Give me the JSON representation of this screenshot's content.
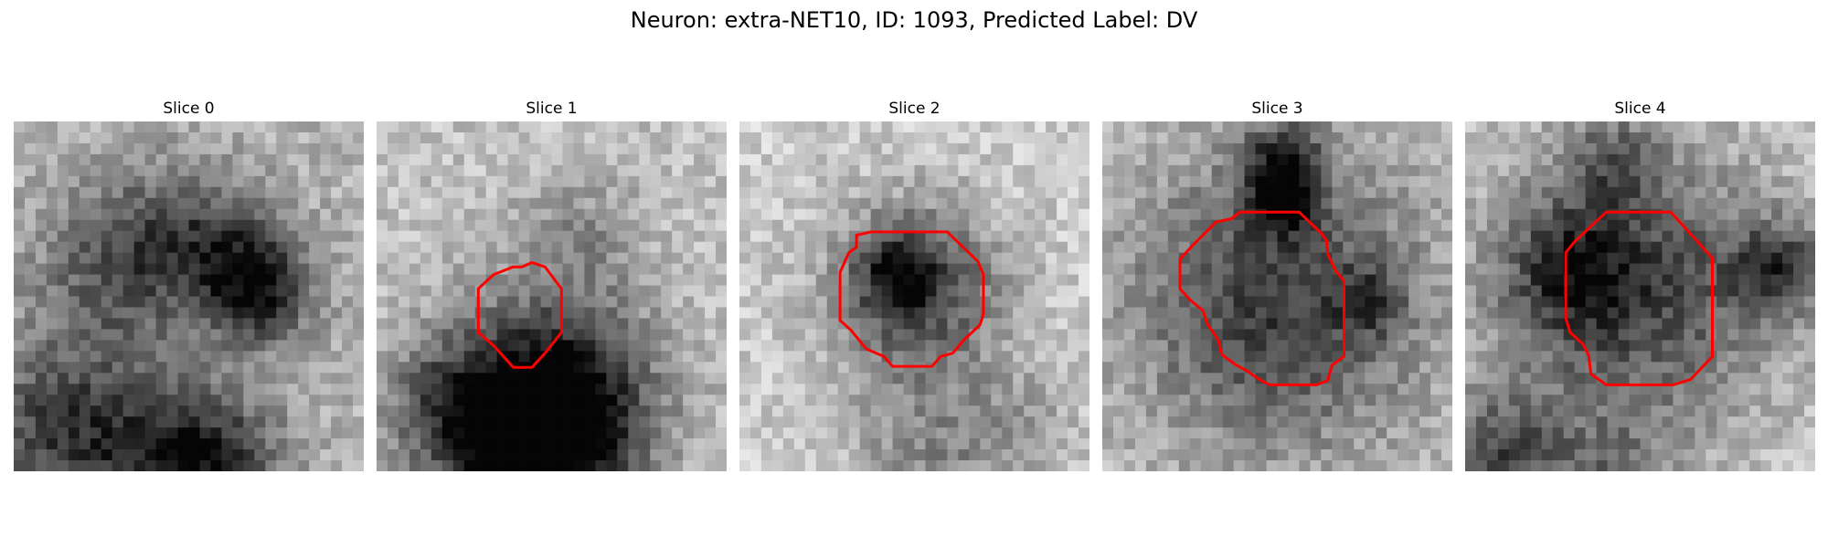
{
  "figure": {
    "title": "Neuron: extra-NET10, ID: 1093, Predicted Label: DV",
    "contour_color": "#ff0000"
  },
  "panels": [
    {
      "title": "Slice 0",
      "image": "grayscale-microscopy-slice",
      "has_contour": false
    },
    {
      "title": "Slice 1",
      "image": "grayscale-microscopy-slice",
      "has_contour": true
    },
    {
      "title": "Slice 2",
      "image": "grayscale-microscopy-slice",
      "has_contour": true
    },
    {
      "title": "Slice 3",
      "image": "grayscale-microscopy-slice",
      "has_contour": true
    },
    {
      "title": "Slice 4",
      "image": "grayscale-microscopy-slice",
      "has_contour": true
    }
  ]
}
